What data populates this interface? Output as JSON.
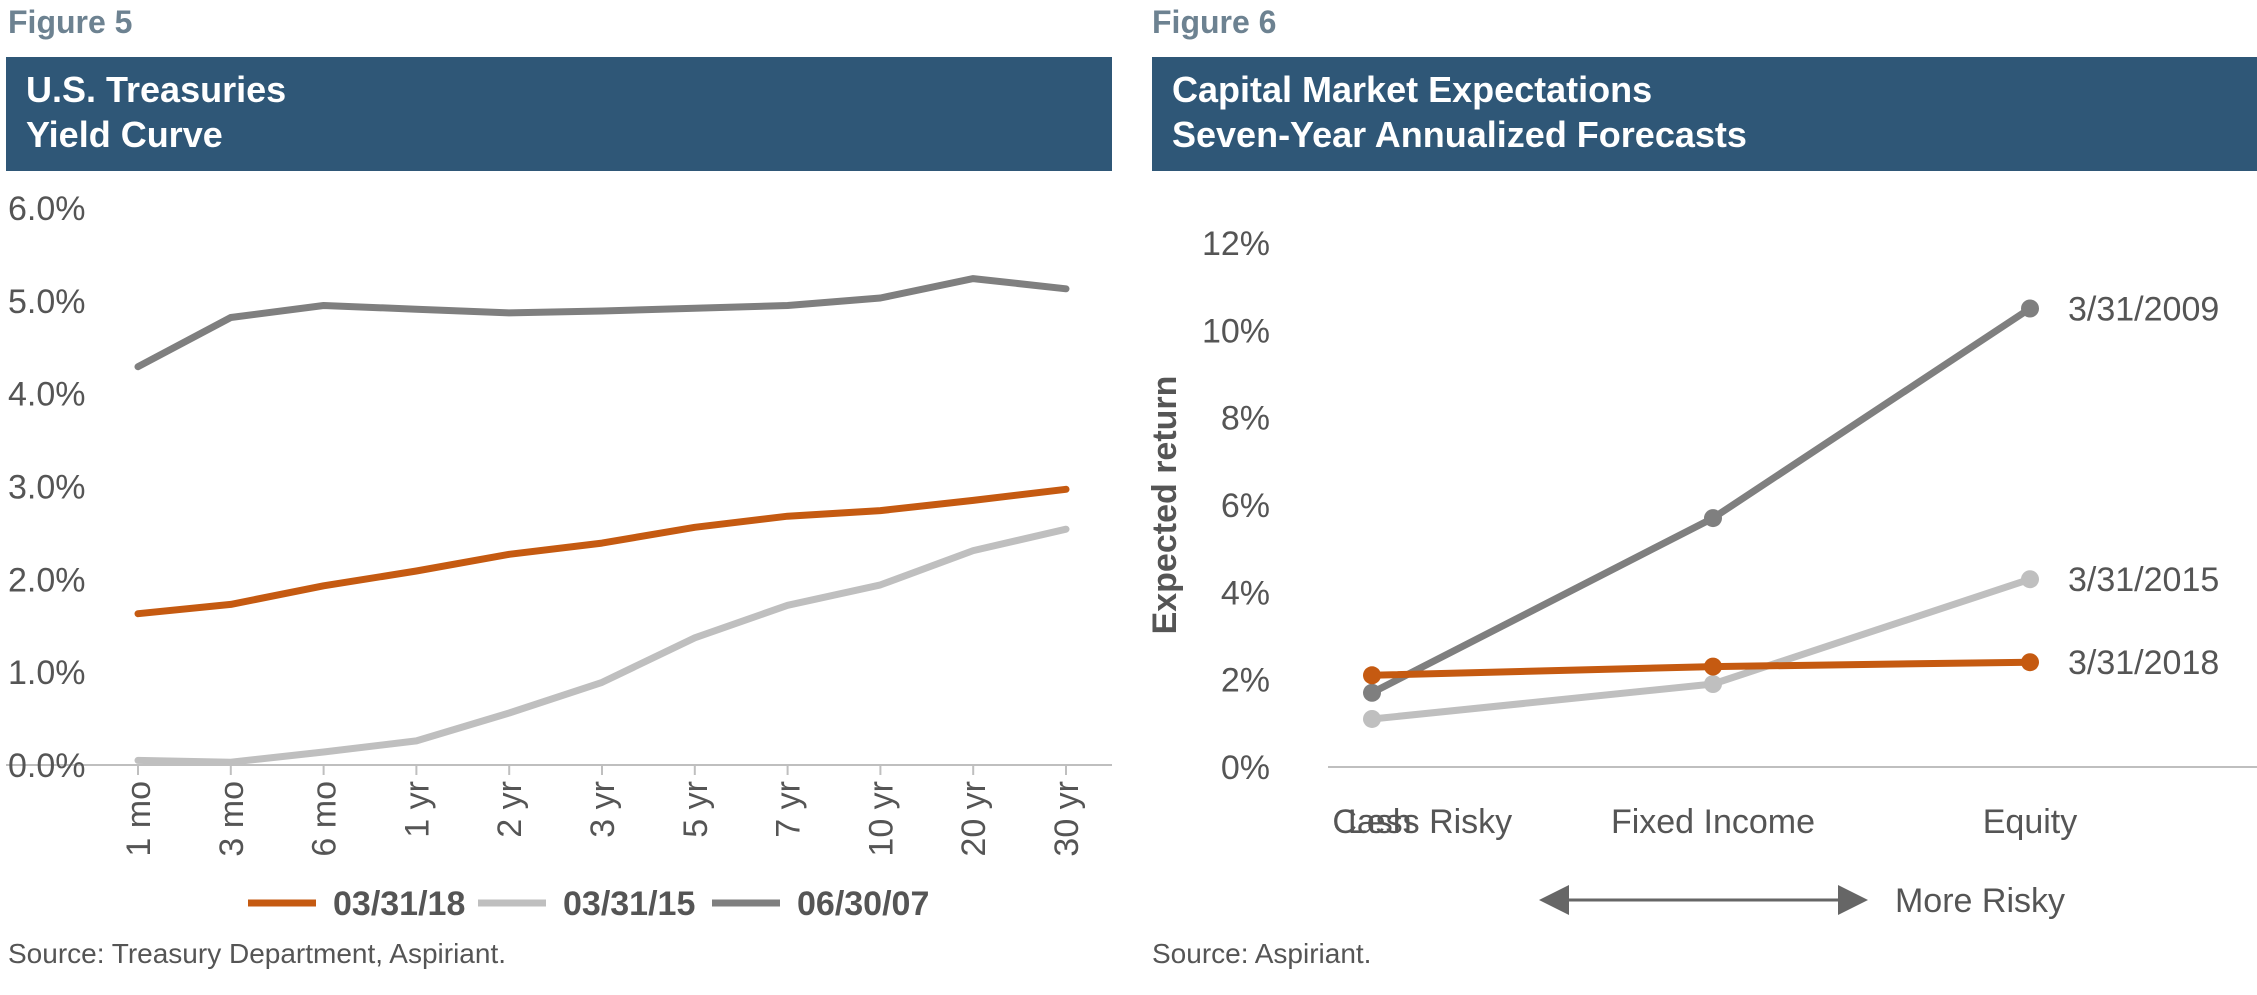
{
  "figures": [
    {
      "label": "Figure 5",
      "title_line1": "U.S. Treasuries",
      "title_line2": "Yield Curve",
      "source": "Source: Treasury Department, Aspiriant.",
      "chart_data": {
        "type": "line",
        "title": "U.S. Treasuries Yield Curve",
        "categories": [
          "1 mo",
          "3 mo",
          "6 mo",
          "1 yr",
          "2 yr",
          "3 yr",
          "5 yr",
          "7 yr",
          "10 yr",
          "20 yr",
          "30 yr"
        ],
        "yticks": [
          "0.0%",
          "1.0%",
          "2.0%",
          "3.0%",
          "4.0%",
          "5.0%",
          "6.0%"
        ],
        "ylim": [
          0,
          6
        ],
        "legend_position": "bottom",
        "series": [
          {
            "name": "03/31/18",
            "color": "#c55a11",
            "values": [
              1.63,
              1.73,
              1.93,
              2.09,
              2.27,
              2.39,
              2.56,
              2.68,
              2.74,
              2.85,
              2.97
            ]
          },
          {
            "name": "03/31/15",
            "color": "#bfbfbf",
            "values": [
              0.05,
              0.03,
              0.14,
              0.26,
              0.56,
              0.89,
              1.37,
              1.72,
              1.94,
              2.31,
              2.54
            ]
          },
          {
            "name": "06/30/07",
            "color": "#7f7f7f",
            "values": [
              4.29,
              4.82,
              4.95,
              4.91,
              4.87,
              4.89,
              4.92,
              4.95,
              5.03,
              5.24,
              5.13
            ]
          }
        ]
      }
    },
    {
      "label": "Figure 6",
      "title_line1": "Capital Market Expectations",
      "title_line2": "Seven-Year Annualized Forecasts",
      "source": "Source: Aspiriant.",
      "chart_data": {
        "type": "line",
        "title": "Capital Market Expectations Seven-Year Annualized Forecasts",
        "categories": [
          "Cash",
          "Fixed Income",
          "Equity"
        ],
        "ylabel": "Expected return",
        "yticks": [
          "0%",
          "2%",
          "4%",
          "6%",
          "8%",
          "10%",
          "12%"
        ],
        "ylim": [
          0,
          12
        ],
        "risk_left": "Less Risky",
        "risk_right": "More Risky",
        "series": [
          {
            "name": "3/31/2009",
            "color": "#7f7f7f",
            "values": [
              1.7,
              5.7,
              10.5
            ]
          },
          {
            "name": "3/31/2015",
            "color": "#bfbfbf",
            "values": [
              1.1,
              1.9,
              4.3
            ]
          },
          {
            "name": "3/31/2018",
            "color": "#c55a11",
            "values": [
              2.1,
              2.3,
              2.4
            ]
          }
        ]
      }
    }
  ]
}
